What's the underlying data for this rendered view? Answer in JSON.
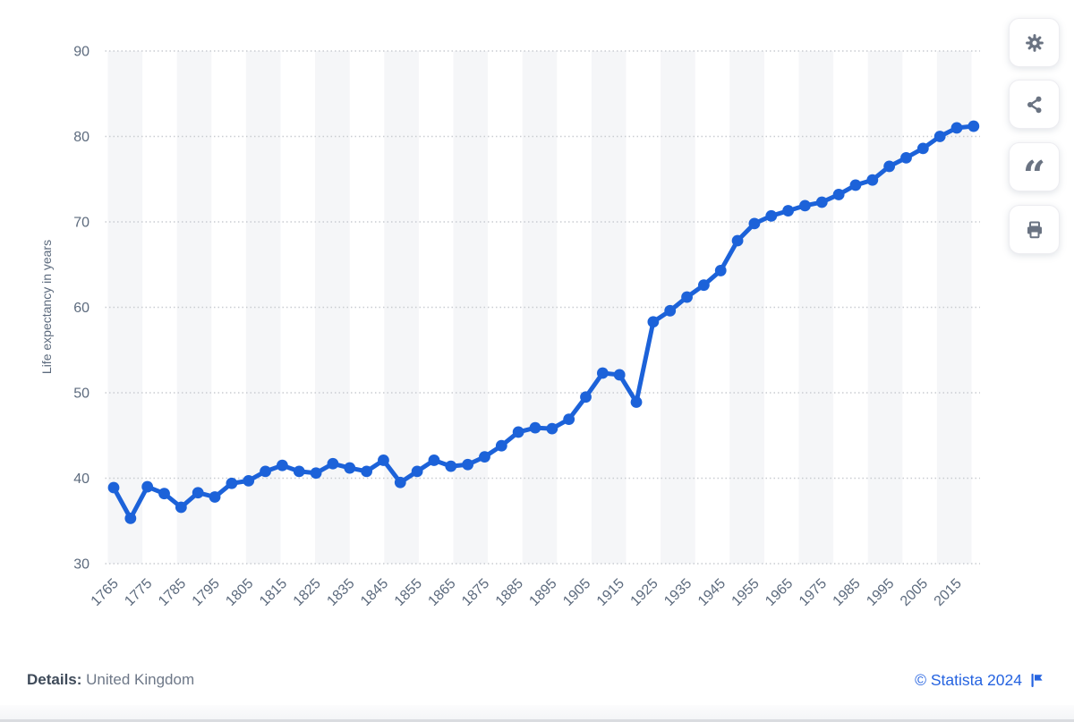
{
  "chart_data": {
    "type": "line",
    "title": "",
    "ylabel": "Life expectancy in years",
    "xlabel": "",
    "ylim": [
      30,
      90
    ],
    "yticks": [
      90,
      80,
      70,
      60,
      50,
      40,
      30
    ],
    "xtick_labels": [
      "1765",
      "1775",
      "1785",
      "1795",
      "1805",
      "1815",
      "1825",
      "1835",
      "1845",
      "1855",
      "1865",
      "1875",
      "1885",
      "1895",
      "1905",
      "1915",
      "1925",
      "1935",
      "1945",
      "1955",
      "1965",
      "1975",
      "1985",
      "1995",
      "2005",
      "2015"
    ],
    "grid": "horizontal dotted gridlines",
    "background_bands": "alternating vertical decade stripes",
    "legend_position": "none",
    "x": [
      1765,
      1770,
      1775,
      1780,
      1785,
      1790,
      1795,
      1800,
      1805,
      1810,
      1815,
      1820,
      1825,
      1830,
      1835,
      1840,
      1845,
      1850,
      1855,
      1860,
      1865,
      1870,
      1875,
      1880,
      1885,
      1890,
      1895,
      1900,
      1905,
      1910,
      1915,
      1920,
      1925,
      1930,
      1935,
      1940,
      1945,
      1950,
      1955,
      1960,
      1965,
      1970,
      1975,
      1980,
      1985,
      1990,
      1995,
      2000,
      2005,
      2010,
      2015,
      2020
    ],
    "series": [
      {
        "name": "Life expectancy in years",
        "values": [
          38.9,
          35.3,
          39.0,
          38.2,
          36.6,
          38.3,
          37.8,
          39.4,
          39.7,
          40.8,
          41.5,
          40.8,
          40.6,
          41.7,
          41.2,
          40.8,
          42.1,
          39.5,
          40.8,
          42.1,
          41.4,
          41.6,
          42.5,
          43.8,
          45.4,
          45.9,
          45.8,
          46.9,
          49.5,
          52.3,
          52.1,
          48.9,
          58.3,
          59.6,
          61.2,
          62.6,
          64.3,
          67.8,
          69.8,
          70.7,
          71.3,
          71.9,
          72.3,
          73.2,
          74.3,
          74.9,
          76.5,
          77.5,
          78.6,
          80.0,
          81.0,
          81.2
        ]
      }
    ]
  },
  "toolbar": {
    "buttons": [
      {
        "name": "settings",
        "icon": "gear-icon"
      },
      {
        "name": "share",
        "icon": "share-icon"
      },
      {
        "name": "cite",
        "icon": "quote-icon"
      },
      {
        "name": "print",
        "icon": "print-icon"
      }
    ]
  },
  "footer": {
    "details_label": "Details:",
    "details_value": "United Kingdom",
    "copyright": "© Statista 2024",
    "flag_icon": "flag-icon"
  },
  "colors": {
    "line": "#1c62d9",
    "grid": "#c9ccd1",
    "band": "#f5f6f8",
    "tick_text": "#5d6b7e",
    "axis_title": "#5d6b7e",
    "link": "#2563e0",
    "icon": "#6a7382"
  }
}
